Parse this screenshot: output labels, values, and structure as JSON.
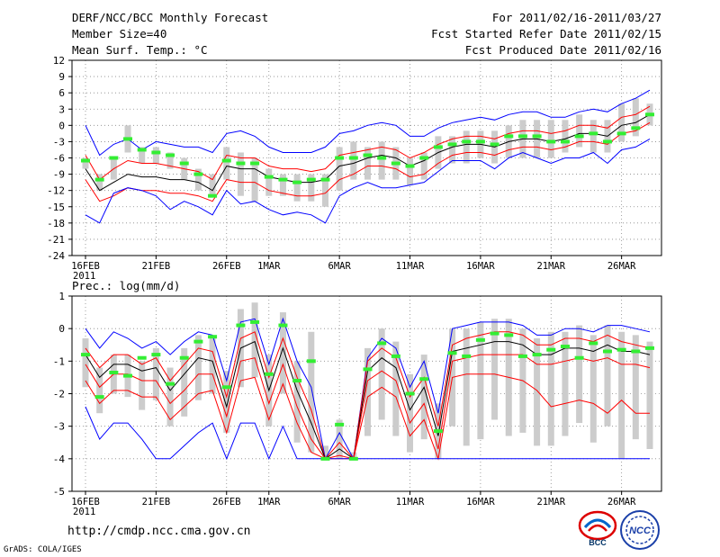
{
  "header": {
    "title": "DERF/NCC/BCC Monthly Forecast",
    "member": "Member Size=40",
    "variable": "Mean Surf. Temp.: °C",
    "period": "For 2011/02/16-2011/03/27",
    "start": "Fcst Started Refer Date 2011/02/15",
    "produced": "Fcst Produced Date 2011/02/16"
  },
  "footer": {
    "url": "http://cmdp.ncc.cma.gov.cn",
    "credit": "GrADS: COLA/IGES",
    "logo1_text": "BCC",
    "logo2_text": "NCC"
  },
  "colors": {
    "max_min": "#0000ff",
    "spread": "#ff0000",
    "mean": "#000000",
    "obs": "#33ee33",
    "bar": "#cccccc",
    "grid": "#888888"
  },
  "chart_data": [
    {
      "type": "line",
      "title": "Mean Surf. Temp.: °C",
      "ylim": [
        -24,
        12
      ],
      "yticks": [
        12,
        9,
        6,
        3,
        0,
        -3,
        -6,
        -9,
        -12,
        -15,
        -18,
        -21,
        -24
      ],
      "xlim": [
        0,
        40
      ],
      "xticks": [
        {
          "x": 0,
          "label": "16FEB",
          "sub": "2011"
        },
        {
          "x": 5,
          "label": "21FEB",
          "sub": ""
        },
        {
          "x": 10,
          "label": "26FEB",
          "sub": ""
        },
        {
          "x": 13,
          "label": "1MAR",
          "sub": ""
        },
        {
          "x": 18,
          "label": "6MAR",
          "sub": ""
        },
        {
          "x": 23,
          "label": "11MAR",
          "sub": ""
        },
        {
          "x": 28,
          "label": "16MAR",
          "sub": ""
        },
        {
          "x": 33,
          "label": "21MAR",
          "sub": ""
        },
        {
          "x": 38,
          "label": "26MAR",
          "sub": ""
        }
      ],
      "series": [
        {
          "name": "max",
          "values": [
            0,
            -5.5,
            -3.5,
            -2.5,
            -4.5,
            -3,
            -3.5,
            -4,
            -4,
            -5,
            -1.5,
            -1,
            -2,
            -4,
            -5,
            -5,
            -5,
            -4,
            -1.5,
            -1,
            0,
            0.5,
            0,
            -2,
            -2,
            -0.5,
            0.5,
            1,
            1.5,
            1,
            2,
            2.5,
            2.5,
            1.5,
            1.5,
            2.5,
            3,
            2.5,
            4,
            5,
            6.5
          ]
        },
        {
          "name": "upper",
          "values": [
            -5.5,
            -10,
            -8,
            -6.5,
            -7,
            -7,
            -7.5,
            -8,
            -8.5,
            -10,
            -5.5,
            -6,
            -6,
            -7.5,
            -8,
            -8,
            -8.5,
            -8,
            -5.5,
            -5,
            -4.5,
            -4,
            -4.5,
            -6,
            -5,
            -3.5,
            -2.5,
            -2,
            -2,
            -2.5,
            -1.5,
            -1,
            -1,
            -1.5,
            -1,
            0,
            0,
            -0.5,
            1.5,
            2,
            3.5
          ]
        },
        {
          "name": "mean",
          "values": [
            -8,
            -12,
            -10.5,
            -9,
            -9.5,
            -9.5,
            -10,
            -10,
            -10.5,
            -12,
            -7.5,
            -8,
            -8,
            -9.5,
            -10,
            -10.5,
            -10.5,
            -10,
            -7.5,
            -7,
            -6,
            -5.5,
            -6,
            -7.5,
            -6.5,
            -5,
            -4,
            -3.5,
            -3.5,
            -4,
            -3,
            -2.5,
            -2.5,
            -3,
            -2.5,
            -1.5,
            -1.5,
            -2,
            0,
            0.5,
            2
          ]
        },
        {
          "name": "lower",
          "values": [
            -10,
            -14,
            -13,
            -11.5,
            -12,
            -12,
            -12.5,
            -12.5,
            -13,
            -14,
            -10,
            -10.5,
            -10.5,
            -12,
            -12.5,
            -13,
            -13,
            -12.5,
            -10,
            -9,
            -7.5,
            -7.5,
            -8,
            -9.5,
            -9,
            -7,
            -5.5,
            -5,
            -5,
            -5.5,
            -4.5,
            -4,
            -4,
            -4.5,
            -4,
            -3,
            -3,
            -3.5,
            -1.5,
            -1,
            0.5
          ]
        },
        {
          "name": "min",
          "values": [
            -16.5,
            -18,
            -12.5,
            -11.5,
            -12,
            -13,
            -15.5,
            -14,
            -15,
            -16.5,
            -12,
            -14.5,
            -14,
            -15.5,
            -16.5,
            -16,
            -16.5,
            -18,
            -13,
            -11.5,
            -10.5,
            -11.5,
            -11.5,
            -11,
            -10.5,
            -8.5,
            -6.5,
            -6.5,
            -6.5,
            -8,
            -6,
            -5,
            -6,
            -7,
            -6,
            -6,
            -5,
            -7,
            -4.5,
            -4,
            -2.5
          ]
        }
      ],
      "bars": [
        [
          -8,
          -6
        ],
        [
          -12,
          -9
        ],
        [
          -10,
          -6
        ],
        [
          -5,
          0
        ],
        [
          -7,
          -4
        ],
        [
          -7,
          -4
        ],
        [
          -8,
          -5
        ],
        [
          -10,
          -6
        ],
        [
          -12,
          -8
        ],
        [
          -13,
          -9
        ],
        [
          -10,
          -4
        ],
        [
          -13,
          -5
        ],
        [
          -14,
          -6
        ],
        [
          -13,
          -8
        ],
        [
          -13,
          -9
        ],
        [
          -14,
          -9
        ],
        [
          -14,
          -9
        ],
        [
          -15,
          -9
        ],
        [
          -12,
          -4
        ],
        [
          -10,
          -3
        ],
        [
          -10,
          -4
        ],
        [
          -10,
          -3
        ],
        [
          -10,
          -4
        ],
        [
          -11,
          -6
        ],
        [
          -10,
          -5
        ],
        [
          -8,
          -2
        ],
        [
          -7,
          -2
        ],
        [
          -7,
          -1
        ],
        [
          -6,
          -1
        ],
        [
          -7,
          -1
        ],
        [
          -6,
          0
        ],
        [
          -6,
          1
        ],
        [
          -6,
          1
        ],
        [
          -6,
          1
        ],
        [
          -5,
          1
        ],
        [
          -4,
          2
        ],
        [
          -5,
          1
        ],
        [
          -5,
          1
        ],
        [
          -3,
          4
        ],
        [
          -2,
          5
        ],
        [
          0,
          4
        ]
      ],
      "obs": [
        -6.5,
        -10,
        -6,
        -2.5,
        -4.5,
        -5,
        -5.5,
        -7,
        -9,
        -13,
        -6.5,
        -7,
        -7,
        -9.5,
        -10,
        -10.5,
        -10,
        -10,
        -6,
        -6,
        -5.5,
        -6,
        -7,
        -7.5,
        -6,
        -4,
        -3.5,
        -3,
        -3,
        -3.5,
        -2,
        -2,
        -2,
        -3,
        -3,
        -2,
        -1.5,
        -3,
        -1.5,
        -0.5,
        2
      ]
    },
    {
      "type": "line",
      "title": "Prec.: log(mm/d)",
      "ylim": [
        -5,
        1
      ],
      "yticks": [
        1,
        0,
        -1,
        -2,
        -3,
        -4,
        -5
      ],
      "xlim": [
        0,
        40
      ],
      "xticks": [
        {
          "x": 0,
          "label": "16FEB",
          "sub": "2011"
        },
        {
          "x": 5,
          "label": "21FEB",
          "sub": ""
        },
        {
          "x": 10,
          "label": "26FEB",
          "sub": ""
        },
        {
          "x": 13,
          "label": "1MAR",
          "sub": ""
        },
        {
          "x": 18,
          "label": "6MAR",
          "sub": ""
        },
        {
          "x": 23,
          "label": "11MAR",
          "sub": ""
        },
        {
          "x": 28,
          "label": "16MAR",
          "sub": ""
        },
        {
          "x": 33,
          "label": "21MAR",
          "sub": ""
        },
        {
          "x": 38,
          "label": "26MAR",
          "sub": ""
        }
      ],
      "series": [
        {
          "name": "max",
          "values": [
            0,
            -0.6,
            -0.1,
            -0.3,
            -0.6,
            -0.4,
            -0.8,
            -0.4,
            -0.1,
            -0.2,
            -1.6,
            0.2,
            0.3,
            -1.1,
            0.3,
            -1,
            -1.8,
            -4,
            -3.2,
            -4,
            -0.9,
            -0.3,
            -0.6,
            -1.8,
            -1,
            -2.6,
            0,
            0.1,
            0.2,
            0.2,
            0.2,
            0.1,
            -0.2,
            -0.2,
            0,
            0,
            -0.1,
            0.1,
            0.1,
            0,
            -0.1
          ]
        },
        {
          "name": "upper",
          "values": [
            -0.6,
            -1.2,
            -0.8,
            -0.8,
            -1.1,
            -0.9,
            -1.6,
            -1.1,
            -0.6,
            -0.7,
            -2.1,
            -0.3,
            -0.1,
            -1.5,
            -0.3,
            -1.5,
            -2.5,
            -4,
            -3.5,
            -4,
            -1,
            -0.6,
            -0.9,
            -2.1,
            -1.5,
            -3,
            -0.5,
            -0.3,
            -0.2,
            -0.1,
            -0.1,
            -0.2,
            -0.5,
            -0.5,
            -0.3,
            -0.3,
            -0.4,
            -0.2,
            -0.4,
            -0.5,
            -0.6
          ]
        },
        {
          "name": "mean",
          "values": [
            -0.8,
            -1.5,
            -1.1,
            -1.1,
            -1.3,
            -1.2,
            -1.9,
            -1.4,
            -0.9,
            -1,
            -2.4,
            -0.6,
            -0.4,
            -1.9,
            -0.6,
            -1.9,
            -2.9,
            -4,
            -3.7,
            -4,
            -1.3,
            -0.9,
            -1.2,
            -2.5,
            -1.8,
            -3.3,
            -0.7,
            -0.6,
            -0.5,
            -0.4,
            -0.4,
            -0.5,
            -0.8,
            -0.8,
            -0.6,
            -0.6,
            -0.7,
            -0.5,
            -0.7,
            -0.7,
            -0.8
          ]
        },
        {
          "name": "lower",
          "values": [
            -1.1,
            -1.8,
            -1.4,
            -1.4,
            -1.6,
            -1.6,
            -2.3,
            -1.9,
            -1.4,
            -1.4,
            -2.7,
            -1,
            -0.9,
            -2.3,
            -1.1,
            -2.4,
            -3.4,
            -4,
            -3.9,
            -4,
            -1.6,
            -1.3,
            -1.6,
            -2.9,
            -2.3,
            -3.7,
            -1,
            -0.9,
            -0.8,
            -0.8,
            -0.8,
            -0.8,
            -1.1,
            -1.1,
            -1,
            -0.9,
            -1,
            -0.9,
            -1.1,
            -1.1,
            -1.2
          ]
        },
        {
          "name": "lower2",
          "values": [
            -1.6,
            -2.3,
            -1.9,
            -1.9,
            -2.1,
            -2.1,
            -2.8,
            -2.4,
            -2,
            -1.9,
            -3.2,
            -1.6,
            -1.5,
            -2.8,
            -1.7,
            -2.9,
            -3.8,
            -4,
            -4,
            -4,
            -2.1,
            -1.8,
            -2.1,
            -3.3,
            -2.8,
            -4,
            -1.5,
            -1.4,
            -1.4,
            -1.4,
            -1.5,
            -1.6,
            -1.9,
            -2.4,
            -2.3,
            -2.2,
            -2.3,
            -2.6,
            -2.2,
            -2.6,
            -2.6
          ]
        },
        {
          "name": "min",
          "values": [
            -2.4,
            -3.4,
            -2.9,
            -2.9,
            -3.4,
            -4,
            -4,
            -3.6,
            -3.2,
            -2.9,
            -4,
            -2.9,
            -2.9,
            -4,
            -3,
            -4,
            -4,
            -4,
            -4,
            -4,
            -4,
            -4,
            -4,
            -4,
            -4,
            -4,
            -4,
            -4,
            -4,
            -4,
            -4,
            -4,
            -4,
            -4,
            -4,
            -4,
            -4,
            -4,
            -4,
            -4,
            -4
          ]
        }
      ],
      "bars": [
        [
          -1.8,
          -0.3
        ],
        [
          -2.6,
          -1.2
        ],
        [
          -2,
          -0.8
        ],
        [
          -2.1,
          -0.8
        ],
        [
          -2.5,
          -1
        ],
        [
          -2.2,
          -0.6
        ],
        [
          -3,
          -1.2
        ],
        [
          -2.7,
          -0.6
        ],
        [
          -2.2,
          -0.2
        ],
        [
          -2,
          -0.3
        ],
        [
          -3.2,
          -1.3
        ],
        [
          -1.8,
          0.6
        ],
        [
          -1.5,
          0.8
        ],
        [
          -3,
          -0.8
        ],
        [
          -2,
          0.5
        ],
        [
          -3.5,
          -1
        ],
        [
          -3.8,
          -0.1
        ],
        [
          -4,
          -3.6
        ],
        [
          -4,
          -2.8
        ],
        [
          -4,
          -3.8
        ],
        [
          -3.3,
          -0.6
        ],
        [
          -2.8,
          0
        ],
        [
          -3.3,
          -0.4
        ],
        [
          -3.8,
          -1.4
        ],
        [
          -3.4,
          -0.8
        ],
        [
          -4,
          -2.3
        ],
        [
          -3,
          0
        ],
        [
          -3.6,
          0
        ],
        [
          -3.4,
          0.2
        ],
        [
          -2.8,
          0.3
        ],
        [
          -3.3,
          0.3
        ],
        [
          -3.2,
          0
        ],
        [
          -3.6,
          -0.3
        ],
        [
          -3.6,
          -0.1
        ],
        [
          -3.3,
          -0.1
        ],
        [
          -2.9,
          0.1
        ],
        [
          -3.5,
          -0.2
        ],
        [
          -3,
          0.1
        ],
        [
          -4,
          -0.1
        ],
        [
          -3.4,
          -0.2
        ],
        [
          -3.7,
          -0.4
        ]
      ],
      "obs": [
        -0.8,
        -2.1,
        -1.35,
        -1.45,
        -0.9,
        -0.8,
        -1.7,
        -0.9,
        -0.4,
        -0.25,
        -1.8,
        0.1,
        0.2,
        -1.4,
        0.1,
        -1.6,
        -1,
        -4,
        -2.95,
        -4,
        -1.25,
        -0.45,
        -0.85,
        -2,
        -1.55,
        -3.15,
        -0.75,
        -0.85,
        -0.35,
        -0.15,
        -0.2,
        -0.85,
        -0.8,
        -0.65,
        -0.55,
        -0.9,
        -0.45,
        -0.7,
        -0.65,
        -0.7,
        -0.6
      ]
    }
  ]
}
